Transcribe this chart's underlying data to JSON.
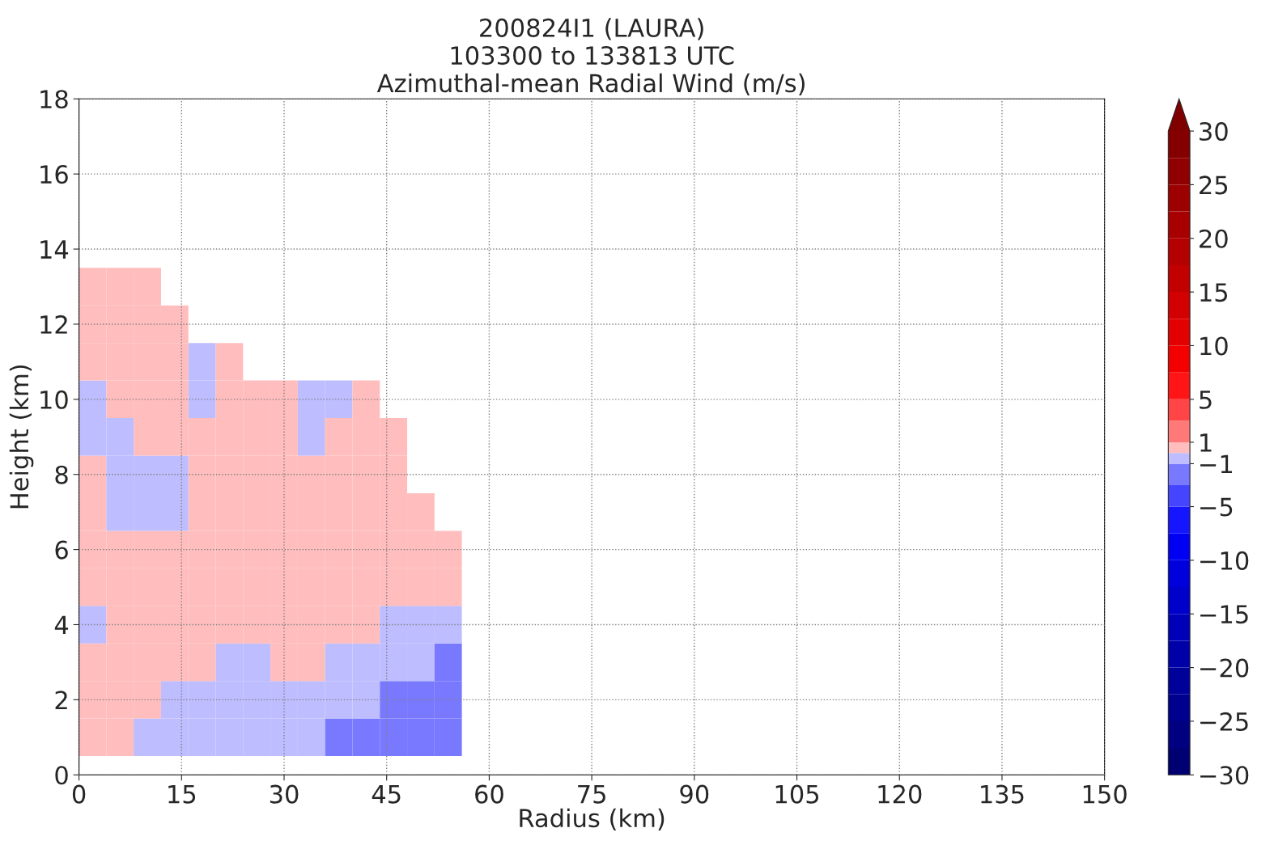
{
  "chart_data": {
    "type": "heatmap",
    "title": "200824I1 (LAURA)\n103300 to 133813 UTC\nAzimuthal-mean Radial Wind (m/s)",
    "xlabel": "Radius (km)",
    "ylabel": "Height (km)",
    "x": [
      2,
      6,
      10,
      14,
      18,
      22,
      26,
      30,
      34,
      38,
      42,
      46,
      50,
      54
    ],
    "y": [
      13,
      12,
      11,
      10,
      9,
      8,
      7,
      6,
      5,
      4,
      3,
      2,
      1
    ],
    "cells": [
      [
        0.5,
        0.5,
        0.5,
        null,
        null,
        null,
        null,
        null,
        null,
        null,
        null,
        null,
        null,
        null
      ],
      [
        0.5,
        0.5,
        0.5,
        0.5,
        null,
        null,
        null,
        null,
        null,
        null,
        null,
        null,
        null,
        null
      ],
      [
        0.5,
        0.5,
        0.5,
        0.5,
        -0.5,
        0.5,
        null,
        null,
        null,
        null,
        null,
        null,
        null,
        null
      ],
      [
        -0.5,
        0.5,
        0.5,
        0.5,
        -0.5,
        0.5,
        0.5,
        0.5,
        -0.5,
        -0.5,
        0.5,
        null,
        null,
        null
      ],
      [
        -0.5,
        -0.5,
        0.5,
        0.5,
        0.5,
        0.5,
        0.5,
        0.5,
        -0.5,
        0.5,
        0.5,
        0.5,
        null,
        null
      ],
      [
        0.5,
        -0.5,
        -0.5,
        -0.5,
        0.5,
        0.5,
        0.5,
        0.5,
        0.5,
        0.5,
        0.5,
        0.5,
        null,
        null
      ],
      [
        0.5,
        -0.5,
        -0.5,
        -0.5,
        0.5,
        0.5,
        0.5,
        0.5,
        0.5,
        0.5,
        0.5,
        0.5,
        0.5,
        null
      ],
      [
        0.5,
        0.5,
        0.5,
        0.5,
        0.5,
        0.5,
        0.5,
        0.5,
        0.5,
        0.5,
        0.5,
        0.5,
        0.5,
        0.5
      ],
      [
        0.5,
        0.5,
        0.5,
        0.5,
        0.5,
        0.5,
        0.5,
        0.5,
        0.5,
        0.5,
        0.5,
        0.5,
        0.5,
        0.5
      ],
      [
        -0.5,
        0.5,
        0.5,
        0.5,
        0.5,
        0.5,
        0.5,
        0.5,
        0.5,
        0.5,
        0.5,
        -0.5,
        -0.5,
        -0.5
      ],
      [
        0.5,
        0.5,
        0.5,
        0.5,
        0.5,
        -0.5,
        -0.5,
        0.5,
        0.5,
        -0.5,
        -0.5,
        -0.5,
        -0.5,
        -2
      ],
      [
        0.5,
        0.5,
        0.5,
        -0.5,
        -0.5,
        -0.5,
        -0.5,
        -0.5,
        -0.5,
        -0.5,
        -0.5,
        -2,
        -2,
        -2
      ],
      [
        0.5,
        0.5,
        -0.5,
        -0.5,
        -0.5,
        -0.5,
        -0.5,
        -0.5,
        -0.5,
        -2,
        -2,
        -2,
        -2,
        -2
      ]
    ],
    "clim": [
      -30,
      30
    ],
    "cticks": [
      -30,
      -25,
      -20,
      -15,
      -10,
      -5,
      -1,
      1,
      5,
      10,
      15,
      20,
      25,
      30
    ],
    "xlim": [
      0,
      150
    ],
    "xticks": [
      0,
      15,
      30,
      45,
      60,
      75,
      90,
      105,
      120,
      135,
      150
    ],
    "ylim": [
      0,
      18
    ],
    "yticks": [
      0,
      2,
      4,
      6,
      8,
      10,
      12,
      14,
      16,
      18
    ],
    "grid": true
  }
}
